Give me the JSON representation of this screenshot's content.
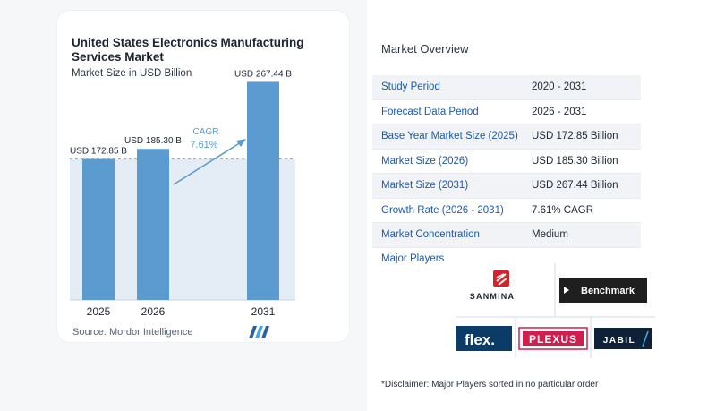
{
  "card": {
    "title": "United States Electronics Manufacturing Services Market",
    "subtitle": "Market Size in USD Billion",
    "source": "Source: Mordor Intelligence",
    "cagr_label": "CAGR",
    "cagr_value": "7.61%"
  },
  "chart_data": {
    "type": "bar",
    "title": "United States Electronics Manufacturing Services Market",
    "subtitle": "Market Size in USD Billion",
    "categories": [
      "2025",
      "2026",
      "2031"
    ],
    "values": [
      172.85,
      185.3,
      267.44
    ],
    "data_labels": [
      "USD 172.85 B",
      "USD 185.30 B",
      "USD 267.44 B"
    ],
    "unit": "USD Billion",
    "ylim": [
      0,
      280
    ],
    "grid": false,
    "legend": "none",
    "colors": {
      "bar": "#5b9bd0",
      "shade": "#e4ecf5",
      "arrow": "#5b9bd0",
      "text": "#1d2533"
    }
  },
  "overview": {
    "title": "Market Overview",
    "rows": [
      {
        "label": "Study Period",
        "value": "2020 - 2031"
      },
      {
        "label": "Forecast Data Period",
        "value": "2026 - 2031"
      },
      {
        "label": "Base Year Market Size (2025)",
        "value": "USD 172.85 Billion"
      },
      {
        "label": "Market Size (2026)",
        "value": "USD 185.30 Billion"
      },
      {
        "label": "Market Size (2031)",
        "value": "USD 267.44 Billion"
      },
      {
        "label": "Growth Rate (2026 - 2031)",
        "value": "7.61% CAGR"
      },
      {
        "label": "Market Concentration",
        "value": "Medium"
      }
    ]
  },
  "players": {
    "label": "Major Players",
    "logos": [
      "SANMINA",
      "Benchmark",
      "flex.",
      "PLEXUS",
      "JABIL"
    ]
  },
  "disclaimer": "*Disclaimer: Major Players sorted in no particular order"
}
